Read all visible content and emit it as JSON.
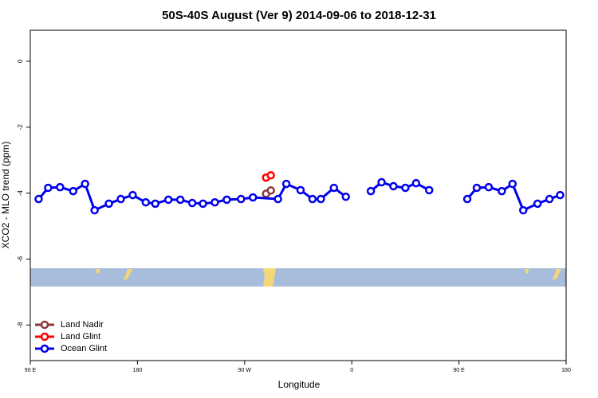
{
  "chart_data": {
    "type": "line",
    "title": "50S-40S August (Ver 9)   2014-09-06 to 2018-12-31",
    "x_label": "Longitude",
    "y_label": "XCO2 - MLO trend (ppm)",
    "xlim": [
      90,
      540
    ],
    "ylim": [
      -9.08,
      0.94
    ],
    "xticks": [
      {
        "value": 90,
        "label": "90 E"
      },
      180,
      {
        "value": 270,
        "label": "90 W"
      },
      {
        "value": 360,
        "label": "0"
      },
      {
        "value": 450,
        "label": "90 E"
      },
      {
        "value": 540,
        "label": "180"
      }
    ],
    "yticks": [
      0,
      -2,
      -4,
      -6,
      -8
    ],
    "legend": "bottom-left",
    "series": [
      {
        "name": "Land Nadir",
        "color": "#8b3a3a",
        "x": [
          288,
          292
        ],
        "values": [
          -4.02,
          -3.92
        ]
      },
      {
        "name": "Land Glint",
        "color": "#ff0000",
        "x": [
          288,
          292
        ],
        "values": [
          -3.53,
          -3.46
        ]
      },
      {
        "name": "Ocean Glint",
        "color": "#0000ee",
        "x": [
          97,
          105,
          115,
          126,
          136,
          144,
          156,
          166,
          176,
          187,
          195,
          206,
          216,
          226,
          235,
          245,
          255,
          267,
          277,
          298,
          305,
          317,
          327,
          334,
          345,
          355,
          null,
          376,
          385,
          395,
          405,
          414,
          425,
          null,
          457,
          465,
          475,
          486,
          495,
          504,
          516,
          526,
          535
        ],
        "values": [
          -4.18,
          -3.84,
          -3.82,
          -3.94,
          -3.72,
          -4.52,
          -4.32,
          -4.18,
          -4.06,
          -4.28,
          -4.32,
          -4.2,
          -4.2,
          -4.3,
          -4.32,
          -4.28,
          -4.2,
          -4.18,
          -4.13,
          -4.18,
          -3.72,
          -3.91,
          -4.18,
          -4.18,
          -3.84,
          -4.11,
          null,
          -3.94,
          -3.67,
          -3.79,
          -3.84,
          -3.7,
          -3.91,
          null,
          -4.18,
          -3.84,
          -3.82,
          -3.94,
          -3.72,
          -4.52,
          -4.32,
          -4.18,
          -4.06
        ]
      }
    ]
  }
}
